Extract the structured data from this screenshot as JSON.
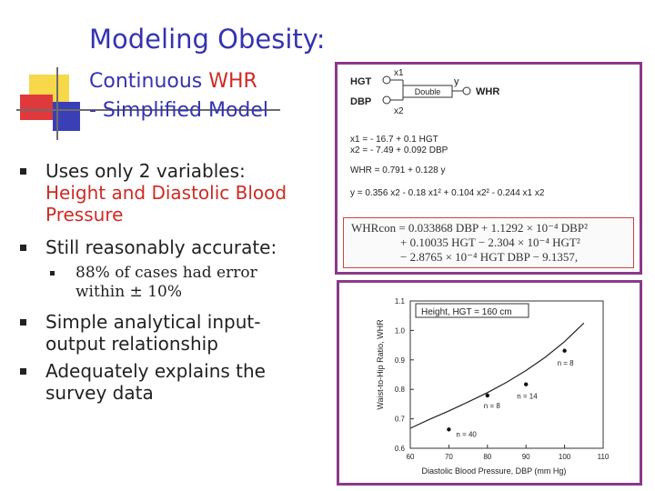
{
  "slide": {
    "title": "Modeling Obesity:",
    "subtitle_line1_a": "Continuous ",
    "subtitle_line1_b": "WHR",
    "subtitle_line2": "- Simplified Model"
  },
  "bullets": {
    "b1_line1": "Uses only 2 variables:",
    "b1_line2": "Height and Diastolic Blood",
    "b1_line3": "Pressure",
    "b2": "Still reasonably accurate:",
    "b3_line1": "88% of cases had error",
    "b3_line2": "within ± 10%",
    "b4_line1": "Simple analytical input-",
    "b4_line2": "output relationship",
    "b5_line1": "Adequately explains the",
    "b5_line2": "survey data"
  },
  "diagram": {
    "input1": "HGT",
    "input2": "DBP",
    "link1": "x1",
    "link2": "x2",
    "node": "Double",
    "out_var": "y",
    "output": "WHR",
    "eq1": "x1 = - 16.7 + 0.1 HGT",
    "eq2": "x2 = - 7.49 + 0.092 DBP",
    "eq3": "WHR = 0.791 + 0.128 y",
    "eq4": "y = 0.356 x2 - 0.18 x1² + 0.104 x2² - 0.244 x1 x2"
  },
  "formula": {
    "row1": "WHRcon = 0.033868 DBP + 1.1292 × 10⁻⁴ DBP²",
    "row2": "+ 0.10035 HGT − 2.304 × 10⁻⁴ HGT²",
    "row3": "− 2.8765 × 10⁻⁴ HGT DBP − 9.1357,"
  },
  "chart_data": {
    "type": "scatter",
    "legend": "Height, HGT = 160 cm",
    "xlabel": "Diastolic Blood Pressure, DBP (mm Hg)",
    "ylabel": "Waist-to-Hip Ratio, WHR",
    "xlim": [
      60,
      110
    ],
    "ylim": [
      0.6,
      1.1
    ],
    "xticks": [
      "60",
      "70",
      "80",
      "90",
      "100",
      "110"
    ],
    "yticks": [
      "0.6",
      "0.7",
      "0.8",
      "0.9",
      "1.0",
      "1.1"
    ],
    "points": [
      {
        "x": 70,
        "y": 0.664,
        "label": "n = 40"
      },
      {
        "x": 80,
        "y": 0.779,
        "label": "n = 8"
      },
      {
        "x": 90,
        "y": 0.817,
        "label": "n = 14"
      },
      {
        "x": 100,
        "y": 0.931,
        "label": "n = 8"
      }
    ],
    "curve": {
      "x": [
        60,
        65,
        70,
        75,
        80,
        85,
        90,
        95,
        100,
        105
      ],
      "y": [
        0.668,
        0.698,
        0.727,
        0.757,
        0.789,
        0.824,
        0.864,
        0.909,
        0.962,
        1.025
      ]
    }
  }
}
